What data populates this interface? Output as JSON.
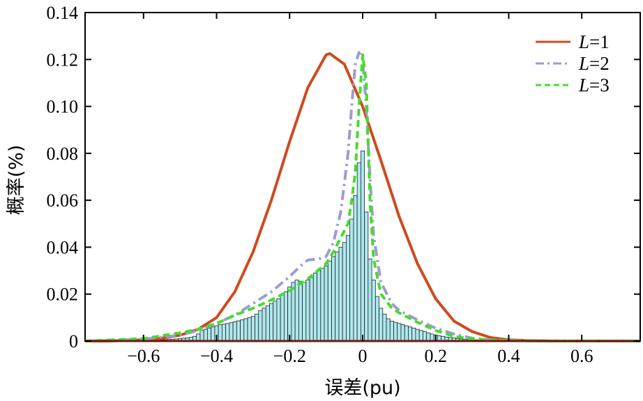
{
  "chart_data": {
    "type": "histogram+line",
    "title": "",
    "xlabel": "误差(pu)",
    "ylabel": "概率(%)",
    "xlim": [
      -0.76,
      0.76
    ],
    "ylim": [
      0,
      0.14
    ],
    "x_ticks": [
      -0.6,
      -0.4,
      -0.2,
      0,
      0.2,
      0.4,
      0.6
    ],
    "x_tick_labels": [
      "−0.6",
      "−0.4",
      "−0.2",
      "0",
      "0.2",
      "0.4",
      "0.6"
    ],
    "y_ticks": [
      0,
      0.02,
      0.04,
      0.06,
      0.08,
      0.1,
      0.12,
      0.14
    ],
    "y_tick_labels": [
      "0",
      "0.02",
      "0.04",
      "0.06",
      "0.08",
      "0.10",
      "0.12",
      "0.14"
    ],
    "legend_position": "top-right",
    "histogram": {
      "bin_width": 0.01,
      "bin_centers": [
        -0.55,
        -0.54,
        -0.53,
        -0.52,
        -0.51,
        -0.5,
        -0.49,
        -0.48,
        -0.47,
        -0.46,
        -0.45,
        -0.44,
        -0.43,
        -0.42,
        -0.41,
        -0.4,
        -0.39,
        -0.38,
        -0.37,
        -0.36,
        -0.35,
        -0.34,
        -0.33,
        -0.32,
        -0.31,
        -0.3,
        -0.29,
        -0.28,
        -0.27,
        -0.26,
        -0.25,
        -0.24,
        -0.23,
        -0.22,
        -0.21,
        -0.2,
        -0.19,
        -0.18,
        -0.17,
        -0.16,
        -0.15,
        -0.14,
        -0.13,
        -0.12,
        -0.11,
        -0.1,
        -0.09,
        -0.08,
        -0.07,
        -0.06,
        -0.05,
        -0.04,
        -0.03,
        -0.02,
        -0.01,
        0.0,
        0.01,
        0.02,
        0.03,
        0.04,
        0.05,
        0.06,
        0.07,
        0.08,
        0.09,
        0.1,
        0.11,
        0.12,
        0.13,
        0.14,
        0.15,
        0.16,
        0.17,
        0.18,
        0.19,
        0.2,
        0.21,
        0.22,
        0.23,
        0.24,
        0.25,
        0.26,
        0.27,
        0.28,
        0.29,
        0.3,
        0.31,
        0.32,
        0.33
      ],
      "values": [
        0.0005,
        0.0006,
        0.0007,
        0.0008,
        0.0009,
        0.001,
        0.0012,
        0.0014,
        0.0016,
        0.002,
        0.003,
        0.0045,
        0.005,
        0.0055,
        0.006,
        0.0065,
        0.007,
        0.0072,
        0.0075,
        0.0078,
        0.0082,
        0.0086,
        0.009,
        0.0095,
        0.01,
        0.0105,
        0.0115,
        0.013,
        0.014,
        0.015,
        0.016,
        0.017,
        0.018,
        0.02,
        0.021,
        0.023,
        0.025,
        0.026,
        0.0255,
        0.025,
        0.026,
        0.027,
        0.029,
        0.03,
        0.031,
        0.032,
        0.034,
        0.036,
        0.038,
        0.04,
        0.042,
        0.045,
        0.052,
        0.062,
        0.076,
        0.081,
        0.055,
        0.035,
        0.026,
        0.019,
        0.014,
        0.0115,
        0.0095,
        0.0085,
        0.008,
        0.0075,
        0.007,
        0.0065,
        0.006,
        0.0055,
        0.005,
        0.0045,
        0.004,
        0.0035,
        0.003,
        0.0025,
        0.0022,
        0.002,
        0.0017,
        0.0015,
        0.0013,
        0.0011,
        0.0009,
        0.0008,
        0.0007,
        0.0006,
        0.0005,
        0.0004,
        0.0003
      ],
      "fill": "#aee8ee",
      "edge": "#222222"
    },
    "series": [
      {
        "name": "L=1",
        "label_var": "L",
        "label_val": "=1",
        "color": "#cf4a1e",
        "style": "solid",
        "x": [
          -0.76,
          -0.7,
          -0.65,
          -0.6,
          -0.55,
          -0.5,
          -0.45,
          -0.4,
          -0.35,
          -0.3,
          -0.25,
          -0.2,
          -0.15,
          -0.1,
          -0.09,
          -0.05,
          0.0,
          0.05,
          0.1,
          0.15,
          0.2,
          0.25,
          0.3,
          0.35,
          0.4,
          0.45,
          0.5,
          0.55,
          0.6,
          0.76
        ],
        "y": [
          0.0,
          0.0,
          0.0002,
          0.0005,
          0.0012,
          0.0025,
          0.005,
          0.01,
          0.021,
          0.038,
          0.06,
          0.085,
          0.108,
          0.122,
          0.1225,
          0.118,
          0.1,
          0.077,
          0.053,
          0.033,
          0.018,
          0.0085,
          0.004,
          0.0015,
          0.0005,
          0.0002,
          0.0001,
          0.0,
          0.0,
          0.0
        ]
      },
      {
        "name": "L=2",
        "label_var": "L",
        "label_val": "=2",
        "color": "#a09ad6",
        "style": "dashdot",
        "x": [
          -0.76,
          -0.6,
          -0.5,
          -0.45,
          -0.4,
          -0.35,
          -0.3,
          -0.25,
          -0.2,
          -0.17,
          -0.15,
          -0.12,
          -0.1,
          -0.08,
          -0.06,
          -0.04,
          -0.03,
          -0.02,
          -0.01,
          0.0,
          0.01,
          0.02,
          0.03,
          0.05,
          0.08,
          0.1,
          0.15,
          0.2,
          0.25,
          0.3,
          0.35,
          0.4,
          0.5,
          0.76
        ],
        "y": [
          0.0,
          0.0008,
          0.0025,
          0.0045,
          0.0075,
          0.011,
          0.016,
          0.021,
          0.0275,
          0.032,
          0.0345,
          0.035,
          0.036,
          0.042,
          0.055,
          0.08,
          0.1,
          0.118,
          0.123,
          0.12,
          0.1,
          0.07,
          0.045,
          0.025,
          0.016,
          0.013,
          0.009,
          0.0055,
          0.003,
          0.0012,
          0.0005,
          0.0002,
          0.0,
          0.0
        ]
      },
      {
        "name": "L=3",
        "label_var": "L",
        "label_val": "=3",
        "color": "#44dd2a",
        "style": "dashed",
        "x": [
          -0.76,
          -0.6,
          -0.5,
          -0.45,
          -0.4,
          -0.35,
          -0.3,
          -0.25,
          -0.2,
          -0.15,
          -0.1,
          -0.08,
          -0.06,
          -0.04,
          -0.03,
          -0.02,
          -0.01,
          0.0,
          0.01,
          0.02,
          0.03,
          0.05,
          0.08,
          0.1,
          0.15,
          0.2,
          0.25,
          0.3,
          0.35,
          0.4,
          0.5,
          0.76
        ],
        "y": [
          0.0,
          0.001,
          0.0035,
          0.005,
          0.0075,
          0.011,
          0.014,
          0.0175,
          0.0215,
          0.0265,
          0.033,
          0.038,
          0.044,
          0.05,
          0.06,
          0.072,
          0.1,
          0.122,
          0.11,
          0.06,
          0.035,
          0.02,
          0.014,
          0.012,
          0.008,
          0.0045,
          0.002,
          0.001,
          0.0005,
          0.0002,
          0.0,
          0.0
        ]
      }
    ]
  }
}
